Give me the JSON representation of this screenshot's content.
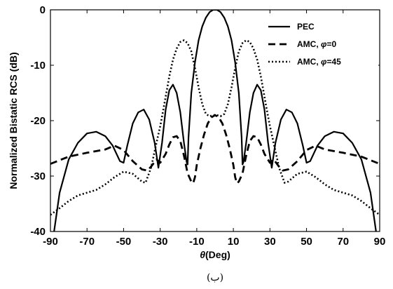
{
  "chart_data": {
    "type": "line",
    "xlabel": {
      "symbol": "θ",
      "text": "(Deg)"
    },
    "ylabel": "Normalized Bistatic RCS (dB)",
    "xlim": [
      -90,
      90
    ],
    "ylim": [
      -40,
      0
    ],
    "xticks": [
      -90,
      -70,
      -50,
      -30,
      -10,
      10,
      30,
      50,
      70,
      90
    ],
    "yticks": [
      0,
      -10,
      -20,
      -30,
      -40
    ],
    "grid": false,
    "legend_position": "top-right",
    "series": [
      {
        "name": "PEC",
        "legend": {
          "text": "PEC",
          "symbol": "",
          "suffix": ""
        },
        "style": "solid",
        "x": [
          -88,
          -85,
          -80,
          -75,
          -70,
          -65,
          -60,
          -56,
          -52,
          -50,
          -48,
          -45,
          -42,
          -39,
          -36,
          -33,
          -31,
          -29,
          -27,
          -25,
          -23,
          -21,
          -19,
          -17,
          -15.5,
          -15,
          -14.5,
          -13,
          -11,
          -9,
          -7,
          -5,
          -3,
          -1,
          0,
          1,
          3,
          5,
          7,
          9,
          11,
          13,
          14.5,
          15,
          15.5,
          17,
          19,
          21,
          23,
          25,
          27,
          29,
          31,
          33,
          36,
          39,
          42,
          45,
          48,
          50,
          52,
          56,
          60,
          65,
          70,
          75,
          80,
          85,
          88
        ],
        "y": [
          -40,
          -33,
          -27,
          -24,
          -22.3,
          -22,
          -22.8,
          -24.5,
          -27.3,
          -27.6,
          -24.5,
          -20.5,
          -18.5,
          -18,
          -19.8,
          -24,
          -28.5,
          -24,
          -18,
          -14.5,
          -13.5,
          -15,
          -18.5,
          -24,
          -27.5,
          -27.9,
          -23,
          -15,
          -9.5,
          -5.5,
          -3,
          -1.4,
          -0.4,
          0,
          0,
          0,
          -0.4,
          -1.4,
          -3,
          -5.5,
          -9.5,
          -15,
          -23,
          -27.9,
          -27.5,
          -24,
          -18.5,
          -15,
          -13.5,
          -14.5,
          -18,
          -24,
          -28.5,
          -24,
          -19.8,
          -18,
          -18.5,
          -20.5,
          -24.5,
          -27.6,
          -27.3,
          -24.5,
          -22.8,
          -22,
          -22.3,
          -24,
          -27,
          -33,
          -40
        ]
      },
      {
        "name": "AMC, φ=0",
        "legend": {
          "text": "AMC, ",
          "symbol": "φ",
          "suffix": "=0"
        },
        "style": "dashed",
        "x": [
          -90,
          -80,
          -70,
          -60,
          -55,
          -50,
          -45,
          -40,
          -37,
          -35,
          -32,
          -30,
          -27,
          -25,
          -23,
          -21,
          -19,
          -17,
          -15,
          -13,
          -12,
          -11,
          -10,
          -8,
          -6,
          -4,
          -2,
          0,
          2,
          4,
          6,
          8,
          10,
          11,
          12,
          13,
          15,
          17,
          19,
          21,
          23,
          25,
          27,
          30,
          32,
          35,
          37,
          40,
          45,
          50,
          55,
          60,
          70,
          80,
          90
        ],
        "y": [
          -27.8,
          -26.5,
          -25.8,
          -25.2,
          -24.5,
          -25.3,
          -27.3,
          -28.8,
          -29,
          -28.3,
          -27,
          -27.6,
          -26,
          -24.3,
          -23,
          -22.8,
          -23.7,
          -26.3,
          -29.5,
          -31,
          -31.3,
          -30.2,
          -28,
          -25,
          -22.5,
          -20.5,
          -19.4,
          -19,
          -19.4,
          -20.5,
          -22.5,
          -25,
          -28,
          -30.2,
          -31.3,
          -31,
          -29.5,
          -26.3,
          -23.7,
          -22.8,
          -23,
          -24.3,
          -26,
          -27.6,
          -27,
          -28.3,
          -29,
          -28.8,
          -27.3,
          -25.3,
          -24.5,
          -25.2,
          -25.8,
          -26.5,
          -27.8
        ]
      },
      {
        "name": "AMC, φ=45",
        "legend": {
          "text": "AMC, ",
          "symbol": "φ",
          "suffix": "=45"
        },
        "style": "dotted",
        "x": [
          -90,
          -85,
          -80,
          -75,
          -70,
          -65,
          -60,
          -55,
          -50,
          -45,
          -40,
          -38,
          -35,
          -32,
          -30,
          -28,
          -25,
          -23,
          -21,
          -19,
          -17,
          -15,
          -13,
          -11,
          -9,
          -7,
          -5,
          -3,
          -1,
          0,
          1,
          3,
          5,
          7,
          9,
          11,
          13,
          15,
          17,
          19,
          21,
          23,
          25,
          28,
          30,
          32,
          35,
          38,
          40,
          45,
          50,
          55,
          60,
          65,
          70,
          75,
          80,
          85,
          90
        ],
        "y": [
          -37,
          -35.8,
          -34.5,
          -33.5,
          -33,
          -32.5,
          -31.5,
          -30.2,
          -29.2,
          -29.6,
          -31,
          -31.2,
          -28.5,
          -24,
          -21,
          -17.5,
          -12,
          -9,
          -7,
          -5.8,
          -5.5,
          -6,
          -7.5,
          -10.5,
          -14,
          -17,
          -18.8,
          -19.2,
          -19,
          -19,
          -19,
          -19.2,
          -18.8,
          -17,
          -14,
          -10.5,
          -7.5,
          -6,
          -5.5,
          -5.8,
          -7,
          -9,
          -12,
          -17.5,
          -21,
          -24,
          -28.5,
          -31.2,
          -31,
          -29.6,
          -29.2,
          -30.2,
          -31.5,
          -32.5,
          -33,
          -33.5,
          -34.5,
          -35.8,
          -37
        ]
      }
    ]
  },
  "caption": "(ب)"
}
